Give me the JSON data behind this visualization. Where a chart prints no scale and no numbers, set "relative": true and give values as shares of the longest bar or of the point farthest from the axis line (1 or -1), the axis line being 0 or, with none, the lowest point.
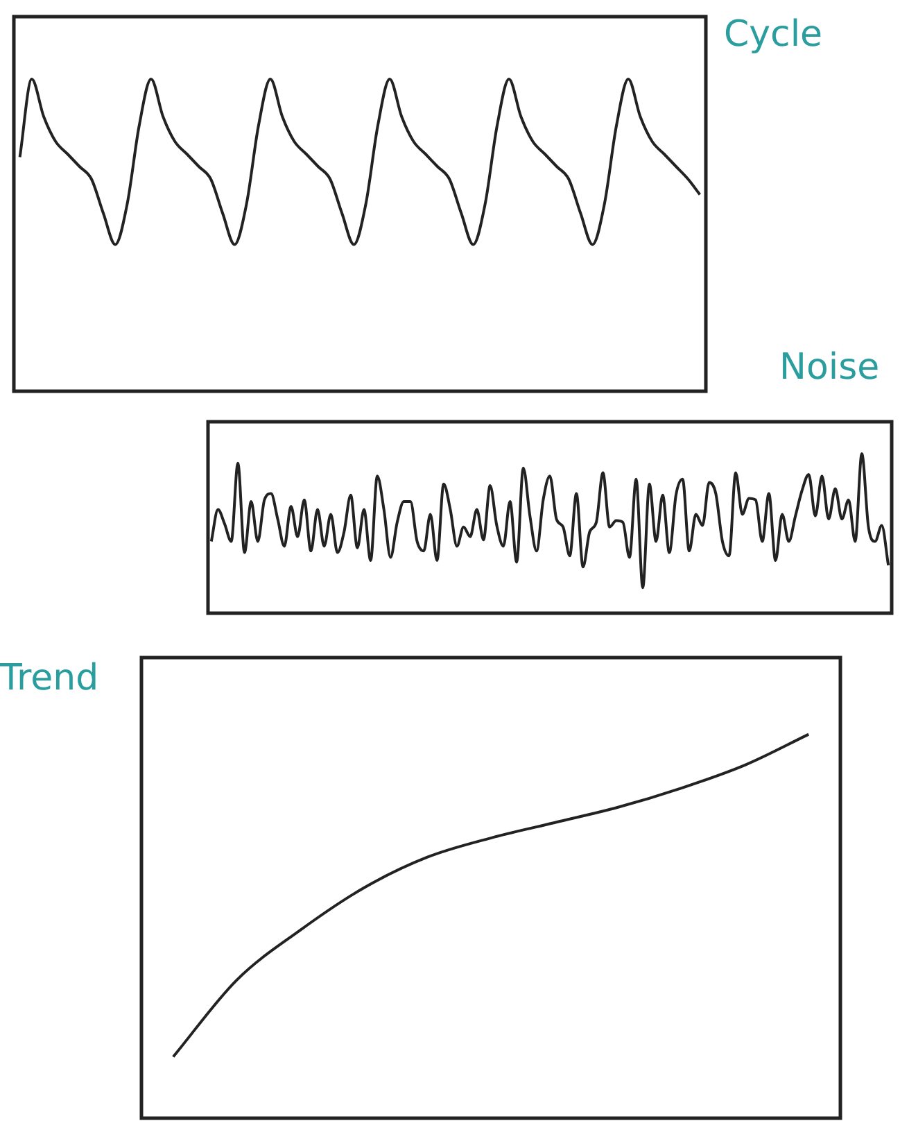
{
  "chart_data": [
    {
      "type": "line",
      "title": "Cycle",
      "relative": true,
      "tick_labels": false,
      "color": "#222222",
      "categories": [
        null,
        null,
        null,
        null,
        null,
        null,
        null,
        null,
        null,
        null,
        null,
        null,
        null,
        null,
        null,
        null,
        null,
        null,
        null,
        null,
        null,
        null,
        null,
        null,
        null,
        null,
        null,
        null,
        null,
        null,
        null,
        null,
        null,
        null,
        null,
        null,
        null,
        null,
        null,
        null,
        null,
        null,
        null,
        null,
        null,
        null,
        null,
        null,
        null,
        null,
        null,
        null,
        null,
        null,
        null,
        null,
        null,
        null
      ],
      "values": [
        0.75,
        1.0,
        0.88,
        0.8,
        0.76,
        0.72,
        0.68,
        0.57,
        0.47,
        0.6,
        0.85,
        1.0,
        0.88,
        0.8,
        0.76,
        0.72,
        0.68,
        0.57,
        0.47,
        0.6,
        0.85,
        1.0,
        0.88,
        0.8,
        0.76,
        0.72,
        0.68,
        0.57,
        0.47,
        0.6,
        0.85,
        1.0,
        0.88,
        0.8,
        0.76,
        0.72,
        0.68,
        0.57,
        0.47,
        0.6,
        0.85,
        1.0,
        0.88,
        0.8,
        0.76,
        0.72,
        0.68,
        0.57,
        0.47,
        0.6,
        0.85,
        1.0,
        0.88,
        0.8,
        0.76,
        0.72,
        0.68,
        0.63
      ]
    },
    {
      "type": "line",
      "title": "Noise",
      "relative": true,
      "tick_labels": false,
      "color": "#222222",
      "categories": [
        null,
        null,
        null,
        null,
        null,
        null,
        null,
        null,
        null,
        null,
        null,
        null,
        null,
        null,
        null,
        null,
        null,
        null,
        null,
        null,
        null,
        null,
        null,
        null,
        null,
        null,
        null,
        null,
        null,
        null,
        null,
        null,
        null,
        null,
        null,
        null,
        null,
        null,
        null,
        null,
        null,
        null,
        null,
        null,
        null,
        null,
        null,
        null,
        null,
        null,
        null,
        null,
        null,
        null,
        null,
        null,
        null,
        null,
        null,
        null,
        null,
        null,
        null,
        null,
        null,
        null,
        null,
        null,
        null,
        null,
        null,
        null,
        null,
        null,
        null,
        null,
        null,
        null,
        null,
        null,
        null,
        null,
        null,
        null,
        null,
        null,
        null,
        null,
        null,
        null,
        null,
        null,
        null,
        null,
        null,
        null,
        null,
        null,
        null,
        null,
        null,
        null,
        null
      ],
      "values": [
        0.45,
        0.65,
        0.56,
        0.45,
        0.94,
        0.38,
        0.7,
        0.45,
        0.71,
        0.75,
        0.59,
        0.42,
        0.67,
        0.48,
        0.71,
        0.39,
        0.65,
        0.42,
        0.62,
        0.38,
        0.51,
        0.74,
        0.41,
        0.65,
        0.33,
        0.86,
        0.65,
        0.35,
        0.57,
        0.7,
        0.7,
        0.45,
        0.39,
        0.62,
        0.33,
        0.81,
        0.65,
        0.42,
        0.54,
        0.48,
        0.65,
        0.46,
        0.8,
        0.55,
        0.42,
        0.7,
        0.32,
        0.91,
        0.61,
        0.39,
        0.71,
        0.86,
        0.59,
        0.54,
        0.36,
        0.75,
        0.29,
        0.51,
        0.57,
        0.88,
        0.54,
        0.58,
        0.57,
        0.35,
        0.84,
        0.16,
        0.81,
        0.45,
        0.74,
        0.38,
        0.74,
        0.84,
        0.39,
        0.62,
        0.55,
        0.82,
        0.75,
        0.45,
        0.36,
        0.88,
        0.62,
        0.72,
        0.71,
        0.45,
        0.75,
        0.33,
        0.62,
        0.45,
        0.61,
        0.77,
        0.87,
        0.61,
        0.86,
        0.59,
        0.78,
        0.59,
        0.71,
        0.45,
        1.0,
        0.54,
        0.45,
        0.55,
        0.3
      ]
    },
    {
      "type": "line",
      "title": "Trend",
      "relative": true,
      "tick_labels": false,
      "color": "#222222",
      "categories": [
        null,
        null,
        null,
        null,
        null,
        null,
        null,
        null,
        null,
        null,
        null
      ],
      "values": [
        0.16,
        0.36,
        0.49,
        0.6,
        0.68,
        0.73,
        0.77,
        0.81,
        0.86,
        0.92,
        1.0
      ]
    }
  ]
}
